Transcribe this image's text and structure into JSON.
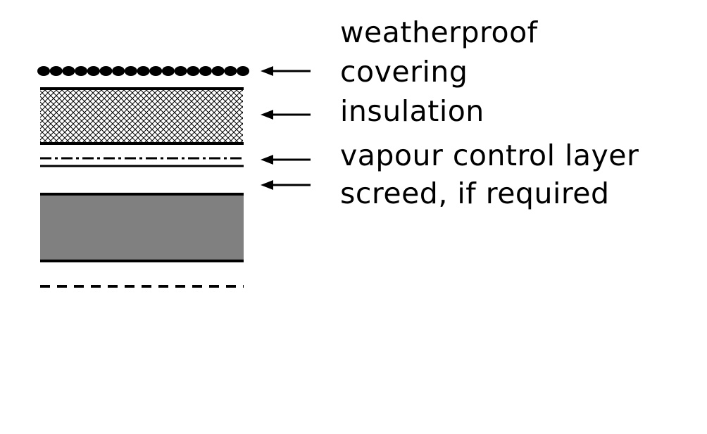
{
  "diagram": {
    "labels": {
      "covering_line1": "weatherproof",
      "covering_line2": "covering",
      "insulation": "insulation",
      "vapour_control": "vapour control layer",
      "screed": "screed, if required"
    },
    "colors": {
      "ink": "#000000",
      "slab_fill": "#808080",
      "background": "#ffffff"
    }
  }
}
